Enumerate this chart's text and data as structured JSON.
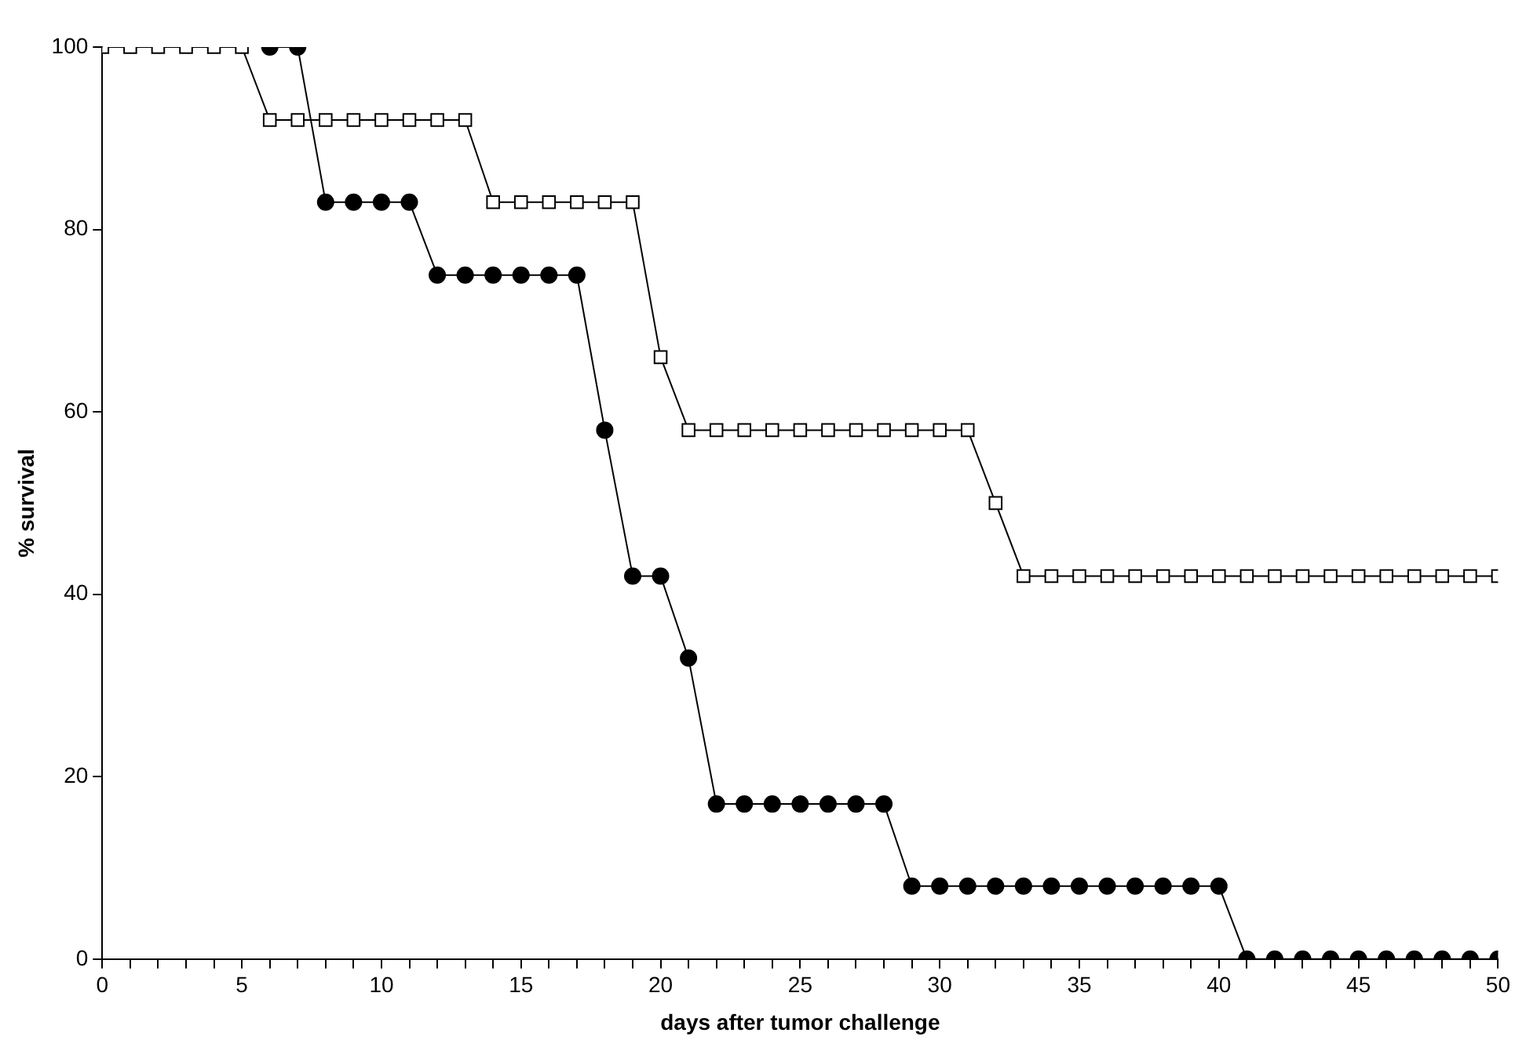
{
  "chart_data": {
    "type": "line",
    "xlabel": "days after tumor challenge",
    "ylabel": "% survival",
    "x": [
      0,
      1,
      2,
      3,
      4,
      5,
      6,
      7,
      8,
      9,
      10,
      11,
      12,
      13,
      14,
      15,
      16,
      17,
      18,
      19,
      20,
      21,
      22,
      23,
      24,
      25,
      26,
      27,
      28,
      29,
      30,
      31,
      32,
      33,
      34,
      35,
      36,
      37,
      38,
      39,
      40,
      41,
      42,
      43,
      44,
      45,
      46,
      47,
      48,
      49,
      50
    ],
    "series": [
      {
        "color": "#000000",
        "marker": "circle",
        "values": [
          null,
          null,
          null,
          null,
          null,
          null,
          100,
          100,
          83,
          83,
          83,
          83,
          75,
          75,
          75,
          75,
          75,
          75,
          58,
          42,
          42,
          33,
          17,
          17,
          17,
          17,
          17,
          17,
          17,
          8,
          8,
          8,
          8,
          8,
          8,
          8,
          8,
          8,
          8,
          8,
          8,
          0,
          0,
          0,
          0,
          0,
          0,
          0,
          0,
          0,
          0
        ]
      },
      {
        "color": "#000000",
        "marker": "square",
        "values": [
          100,
          100,
          100,
          100,
          100,
          100,
          92,
          92,
          92,
          92,
          92,
          92,
          92,
          92,
          83,
          83,
          83,
          83,
          83,
          83,
          66,
          58,
          58,
          58,
          58,
          58,
          58,
          58,
          58,
          58,
          58,
          58,
          50,
          42,
          42,
          42,
          42,
          42,
          42,
          42,
          42,
          42,
          42,
          42,
          42,
          42,
          42,
          42,
          42,
          42,
          42
        ]
      }
    ],
    "xlim": [
      0,
      50
    ],
    "xticks": [
      0,
      {
        "value": 1,
        "label": null
      },
      {
        "value": 2,
        "label": null
      },
      {
        "value": 3,
        "label": null
      },
      {
        "value": 4,
        "label": null
      },
      5,
      {
        "value": 6,
        "label": null
      },
      {
        "value": 7,
        "label": null
      },
      {
        "value": 8,
        "label": null
      },
      {
        "value": 9,
        "label": null
      },
      10,
      {
        "value": 11,
        "label": null
      },
      {
        "value": 12,
        "label": null
      },
      {
        "value": 13,
        "label": null
      },
      {
        "value": 14,
        "label": null
      },
      15,
      {
        "value": 16,
        "label": null
      },
      {
        "value": 17,
        "label": null
      },
      {
        "value": 18,
        "label": null
      },
      {
        "value": 19,
        "label": null
      },
      20,
      {
        "value": 21,
        "label": null
      },
      {
        "value": 22,
        "label": null
      },
      {
        "value": 23,
        "label": null
      },
      {
        "value": 24,
        "label": null
      },
      25,
      {
        "value": 26,
        "label": null
      },
      {
        "value": 27,
        "label": null
      },
      {
        "value": 28,
        "label": null
      },
      {
        "value": 29,
        "label": null
      },
      30,
      {
        "value": 31,
        "label": null
      },
      {
        "value": 32,
        "label": null
      },
      {
        "value": 33,
        "label": null
      },
      {
        "value": 34,
        "label": null
      },
      35,
      {
        "value": 36,
        "label": null
      },
      {
        "value": 37,
        "label": null
      },
      {
        "value": 38,
        "label": null
      },
      {
        "value": 39,
        "label": null
      },
      40,
      {
        "value": 41,
        "label": null
      },
      {
        "value": 42,
        "label": null
      },
      {
        "value": 43,
        "label": null
      },
      {
        "value": 44,
        "label": null
      },
      45,
      {
        "value": 46,
        "label": null
      },
      {
        "value": 47,
        "label": null
      },
      {
        "value": 48,
        "label": null
      },
      {
        "value": 49,
        "label": null
      },
      50
    ],
    "ylim": [
      0,
      100
    ],
    "yticks": [
      0,
      20,
      40,
      60,
      80,
      100
    ],
    "grid": false,
    "legend": false,
    "line_style": "solid"
  }
}
